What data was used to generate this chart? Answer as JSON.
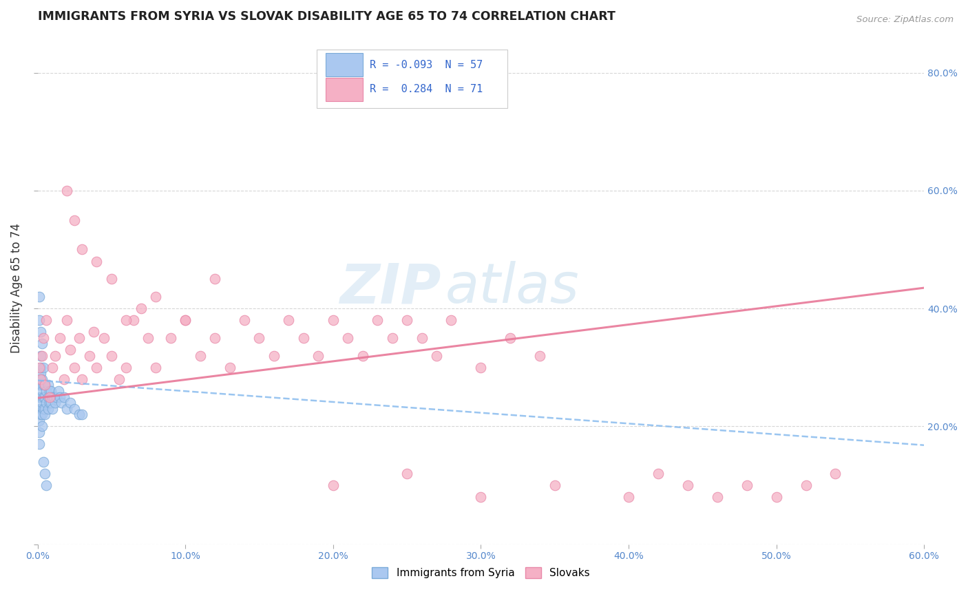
{
  "title": "IMMIGRANTS FROM SYRIA VS SLOVAK DISABILITY AGE 65 TO 74 CORRELATION CHART",
  "source": "Source: ZipAtlas.com",
  "ylabel": "Disability Age 65 to 74",
  "x_min": 0.0,
  "x_max": 0.6,
  "y_min": 0.0,
  "y_max": 0.87,
  "right_yticks": [
    0.2,
    0.4,
    0.6,
    0.8
  ],
  "right_yticklabels": [
    "20.0%",
    "40.0%",
    "60.0%",
    "80.0%"
  ],
  "legend_R_syria": "-0.093",
  "legend_N_syria": "57",
  "legend_R_slovak": "0.284",
  "legend_N_slovak": "71",
  "color_syria": "#aac8f0",
  "color_slovak": "#f5b0c5",
  "color_syria_edge": "#7aaad8",
  "color_slovak_edge": "#e888a8",
  "trendline_syria_color": "#88bbee",
  "trendline_slovak_color": "#e87898",
  "background_color": "#ffffff",
  "grid_color": "#cccccc",
  "watermark_zip": "ZIP",
  "watermark_atlas": "atlas",
  "syria_x": [
    0.001,
    0.001,
    0.001,
    0.001,
    0.001,
    0.001,
    0.001,
    0.002,
    0.002,
    0.002,
    0.002,
    0.002,
    0.002,
    0.002,
    0.003,
    0.003,
    0.003,
    0.003,
    0.003,
    0.004,
    0.004,
    0.004,
    0.004,
    0.005,
    0.005,
    0.005,
    0.005,
    0.006,
    0.006,
    0.007,
    0.007,
    0.007,
    0.008,
    0.008,
    0.009,
    0.009,
    0.01,
    0.01,
    0.011,
    0.012,
    0.013,
    0.014,
    0.015,
    0.016,
    0.018,
    0.02,
    0.022,
    0.025,
    0.028,
    0.03,
    0.001,
    0.001,
    0.002,
    0.003,
    0.004,
    0.005,
    0.006
  ],
  "syria_y": [
    0.27,
    0.25,
    0.23,
    0.21,
    0.19,
    0.17,
    0.28,
    0.29,
    0.27,
    0.25,
    0.23,
    0.22,
    0.3,
    0.32,
    0.28,
    0.26,
    0.24,
    0.22,
    0.2,
    0.27,
    0.25,
    0.23,
    0.3,
    0.27,
    0.25,
    0.23,
    0.22,
    0.26,
    0.24,
    0.27,
    0.25,
    0.23,
    0.26,
    0.24,
    0.26,
    0.24,
    0.25,
    0.23,
    0.25,
    0.24,
    0.25,
    0.26,
    0.25,
    0.24,
    0.25,
    0.23,
    0.24,
    0.23,
    0.22,
    0.22,
    0.42,
    0.38,
    0.36,
    0.34,
    0.14,
    0.12,
    0.1
  ],
  "slovak_x": [
    0.001,
    0.002,
    0.003,
    0.004,
    0.005,
    0.006,
    0.008,
    0.01,
    0.012,
    0.015,
    0.018,
    0.02,
    0.022,
    0.025,
    0.028,
    0.03,
    0.035,
    0.038,
    0.04,
    0.045,
    0.05,
    0.055,
    0.06,
    0.065,
    0.07,
    0.075,
    0.08,
    0.09,
    0.1,
    0.11,
    0.12,
    0.13,
    0.14,
    0.15,
    0.16,
    0.17,
    0.18,
    0.19,
    0.2,
    0.21,
    0.22,
    0.23,
    0.24,
    0.25,
    0.26,
    0.27,
    0.28,
    0.3,
    0.32,
    0.34,
    0.02,
    0.025,
    0.03,
    0.04,
    0.05,
    0.06,
    0.08,
    0.1,
    0.12,
    0.2,
    0.25,
    0.3,
    0.35,
    0.4,
    0.42,
    0.44,
    0.46,
    0.48,
    0.5,
    0.52,
    0.54
  ],
  "slovak_y": [
    0.3,
    0.28,
    0.32,
    0.35,
    0.27,
    0.38,
    0.25,
    0.3,
    0.32,
    0.35,
    0.28,
    0.38,
    0.33,
    0.3,
    0.35,
    0.28,
    0.32,
    0.36,
    0.3,
    0.35,
    0.32,
    0.28,
    0.3,
    0.38,
    0.4,
    0.35,
    0.3,
    0.35,
    0.38,
    0.32,
    0.35,
    0.3,
    0.38,
    0.35,
    0.32,
    0.38,
    0.35,
    0.32,
    0.38,
    0.35,
    0.32,
    0.38,
    0.35,
    0.38,
    0.35,
    0.32,
    0.38,
    0.3,
    0.35,
    0.32,
    0.6,
    0.55,
    0.5,
    0.48,
    0.45,
    0.38,
    0.42,
    0.38,
    0.45,
    0.1,
    0.12,
    0.08,
    0.1,
    0.08,
    0.12,
    0.1,
    0.08,
    0.1,
    0.08,
    0.1,
    0.12
  ],
  "trendline_syria_x0": 0.0,
  "trendline_syria_y0": 0.278,
  "trendline_syria_x1": 0.6,
  "trendline_syria_y1": 0.168,
  "trendline_slovak_x0": 0.0,
  "trendline_slovak_y0": 0.248,
  "trendline_slovak_x1": 0.6,
  "trendline_slovak_y1": 0.435
}
